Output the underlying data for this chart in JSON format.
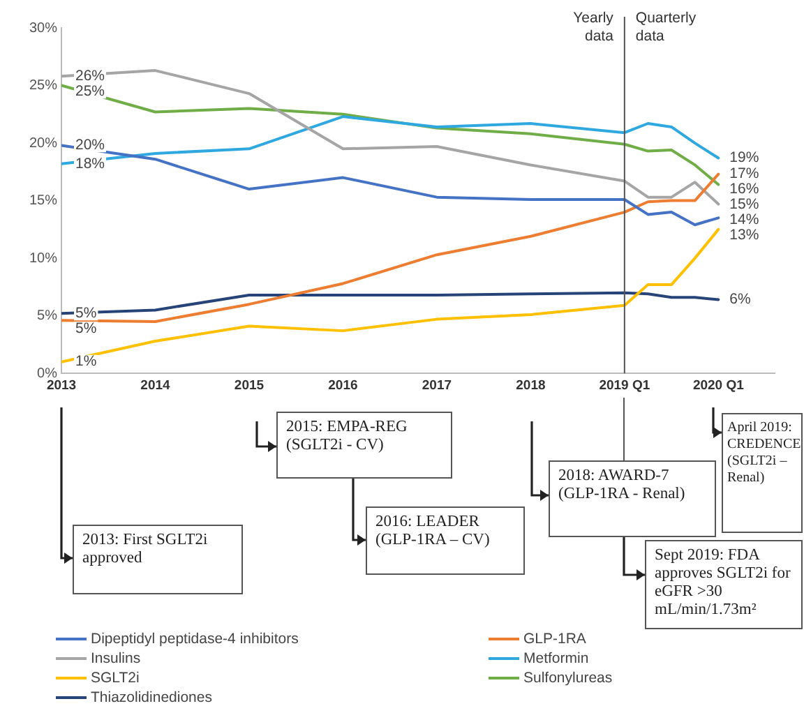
{
  "chart_data": {
    "type": "line",
    "x": [
      2013,
      2014,
      2015,
      2016,
      2017,
      2018,
      2019,
      2019.25,
      2019.5,
      2019.75,
      2020
    ],
    "xlim": [
      2013,
      2020.6
    ],
    "xticks": [
      2013,
      2014,
      2015,
      2016,
      2017,
      2018,
      {
        "value": 2019,
        "label": "2019 Q1"
      },
      {
        "value": 2020,
        "label": "2020 Q1"
      }
    ],
    "ylim": [
      0,
      30
    ],
    "yticks": [
      {
        "value": 0,
        "label": "0%"
      },
      {
        "value": 5,
        "label": "5%"
      },
      {
        "value": 10,
        "label": "10%"
      },
      {
        "value": 15,
        "label": "15%"
      },
      {
        "value": 20,
        "label": "20%"
      },
      {
        "value": 25,
        "label": "25%"
      },
      {
        "value": 30,
        "label": "30%"
      }
    ],
    "grid": false,
    "legend": "bottom",
    "marker": "none",
    "line_style": "solid",
    "series": [
      {
        "name": "Dipeptidyl peptidase-4 inhibitors",
        "color": "#4472c4",
        "values": [
          19.8,
          18.6,
          16.0,
          17.0,
          15.3,
          15.1,
          15.1,
          13.8,
          14.0,
          12.9,
          13.5
        ],
        "value_labels": [
          "20%",
          null,
          null,
          null,
          null,
          null,
          null,
          null,
          null,
          null,
          "14%"
        ]
      },
      {
        "name": "GLP-1RA",
        "color": "#ed7d31",
        "values": [
          4.6,
          4.5,
          6.0,
          7.8,
          10.3,
          11.9,
          14.0,
          14.9,
          15.0,
          15.0,
          17.3
        ],
        "value_labels": [
          "5%",
          null,
          null,
          null,
          null,
          null,
          null,
          null,
          null,
          null,
          "17%"
        ]
      },
      {
        "name": "Insulins",
        "color": "#a5a5a5",
        "values": [
          25.8,
          26.3,
          24.3,
          19.5,
          19.7,
          18.1,
          16.7,
          15.3,
          15.3,
          16.6,
          14.7
        ],
        "value_labels": [
          "26%",
          null,
          null,
          null,
          null,
          null,
          null,
          null,
          null,
          null,
          "15%"
        ]
      },
      {
        "name": "Metformin",
        "color": "#2fa8e0",
        "values": [
          18.2,
          19.1,
          19.5,
          22.3,
          21.4,
          21.7,
          20.9,
          21.7,
          21.4,
          20.0,
          18.7
        ],
        "value_labels": [
          "18%",
          null,
          null,
          null,
          null,
          null,
          null,
          null,
          null,
          null,
          "19%"
        ]
      },
      {
        "name": "SGLT2i",
        "color": "#ffc000",
        "values": [
          1.0,
          2.8,
          4.1,
          3.7,
          4.7,
          5.1,
          5.9,
          7.7,
          7.7,
          10.0,
          12.5
        ],
        "value_labels": [
          "1%",
          null,
          null,
          null,
          null,
          null,
          null,
          null,
          null,
          null,
          "13%"
        ]
      },
      {
        "name": "Sulfonylureas",
        "color": "#70ad47",
        "values": [
          25.0,
          22.7,
          23.0,
          22.5,
          21.3,
          20.8,
          19.9,
          19.3,
          19.4,
          18.1,
          16.4
        ],
        "value_labels": [
          "25%",
          null,
          null,
          null,
          null,
          null,
          null,
          null,
          null,
          null,
          "16%"
        ]
      },
      {
        "name": "Thiazolidinediones",
        "color": "#264478",
        "values": [
          5.2,
          5.5,
          6.8,
          6.8,
          6.8,
          6.9,
          7.0,
          6.9,
          6.6,
          6.6,
          6.4
        ],
        "value_labels": [
          "5%",
          null,
          null,
          null,
          null,
          null,
          null,
          null,
          null,
          null,
          "6%"
        ]
      }
    ],
    "ref_lines": [
      {
        "axis": "x",
        "value": 2019,
        "label": "Yearly data",
        "color": "#555555"
      }
    ],
    "annotations": [
      "Quarterly data",
      "2013: First SGLT2i approved",
      "2015: EMPA-REG (SGLT2i - CV)",
      "2016: LEADER (GLP-1RA – CV)",
      "2018: AWARD-7 (GLP-1RA - Renal)",
      "April 2019: CREDENCE (SGLT2i – Renal)",
      "Sept 2019: FDA approves SGLT2i for eGFR >30 mL/min/1.73m²"
    ]
  }
}
